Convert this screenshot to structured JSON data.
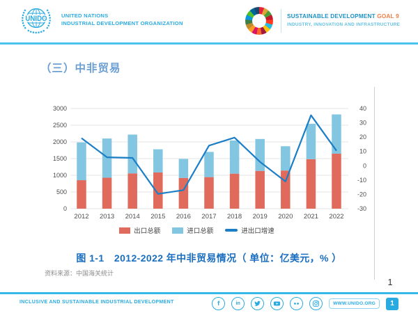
{
  "header": {
    "unido_name": "UNIDO",
    "un_line1": "UNITED NATIONS",
    "un_line2": "INDUSTRIAL DEVELOPMENT ORGANIZATION",
    "sdg_title": "SUSTAINABLE DEVELOPMENT",
    "sdg_goal": "GOAL 9",
    "sdg_subtitle": "INDUSTRY, INNOVATION AND INFRASTRUCTURE",
    "sdg_wheel_colors": [
      "#E5243B",
      "#DDA63A",
      "#4C9F38",
      "#C5192D",
      "#FF3A21",
      "#26BDE2",
      "#FCC30B",
      "#A21942",
      "#FD6925",
      "#DD1367",
      "#FD9D24",
      "#BF8B2E",
      "#3F7E44",
      "#0A97D9",
      "#56C02B",
      "#00689D",
      "#19486A"
    ]
  },
  "title": "（三）中非贸易",
  "chart_data": {
    "type": "bar",
    "subtype": "stacked-bars-with-line-overlay",
    "title": "图 1-1　2012-2022 年中非贸易情况（ 单位：亿美元，% ）",
    "categories": [
      "2012",
      "2013",
      "2014",
      "2015",
      "2016",
      "2017",
      "2018",
      "2019",
      "2020",
      "2021",
      "2022"
    ],
    "series": [
      {
        "name": "出口总额",
        "type": "bar",
        "stack": true,
        "color": "#e06a5b",
        "values": [
          853,
          928,
          1057,
          1084,
          921,
          945,
          1049,
          1131,
          1142,
          1483,
          1646
        ]
      },
      {
        "name": "进口总额",
        "type": "bar",
        "stack": true,
        "color": "#82c6e2",
        "values": [
          1132,
          1173,
          1162,
          695,
          569,
          755,
          993,
          956,
          728,
          1060,
          1177
        ]
      },
      {
        "name": "进出口增速",
        "type": "line",
        "axis": "right",
        "color": "#1b7ec7",
        "values": [
          19.3,
          5.9,
          5.5,
          -19.7,
          -17.0,
          14.1,
          19.7,
          2.7,
          -11.0,
          35.3,
          10.5
        ]
      }
    ],
    "left_axis": {
      "min": 0,
      "max": 3000,
      "step": 500
    },
    "right_axis": {
      "min": -30,
      "max": 40,
      "step": 10,
      "unit": "%"
    },
    "grid": true,
    "legend_position": "bottom"
  },
  "caption": "图 1-1　2012-2022 年中非贸易情况（ 单位：亿美元，% ）",
  "source": "资料来源：中国海关统计",
  "page_number": "1",
  "footer": {
    "tagline": "INCLUSIVE AND SUSTAINABLE INDUSTRIAL DEVELOPMENT",
    "icons": [
      "facebook-icon",
      "linkedin-icon",
      "twitter-icon",
      "youtube-icon",
      "flickr-icon",
      "instagram-icon"
    ],
    "facebook_glyph": "f",
    "linkedin_glyph": "in",
    "website": "WWW.UNIDO.ORG",
    "page_badge": "1"
  },
  "colors": {
    "brand_blue": "#29abe2",
    "title_blue": "#6b9fd4",
    "caption_blue": "#1a6ebf",
    "goal_orange": "#f47b45",
    "bar_export": "#e06a5b",
    "bar_import": "#82c6e2",
    "line_growth": "#1b7ec7"
  }
}
